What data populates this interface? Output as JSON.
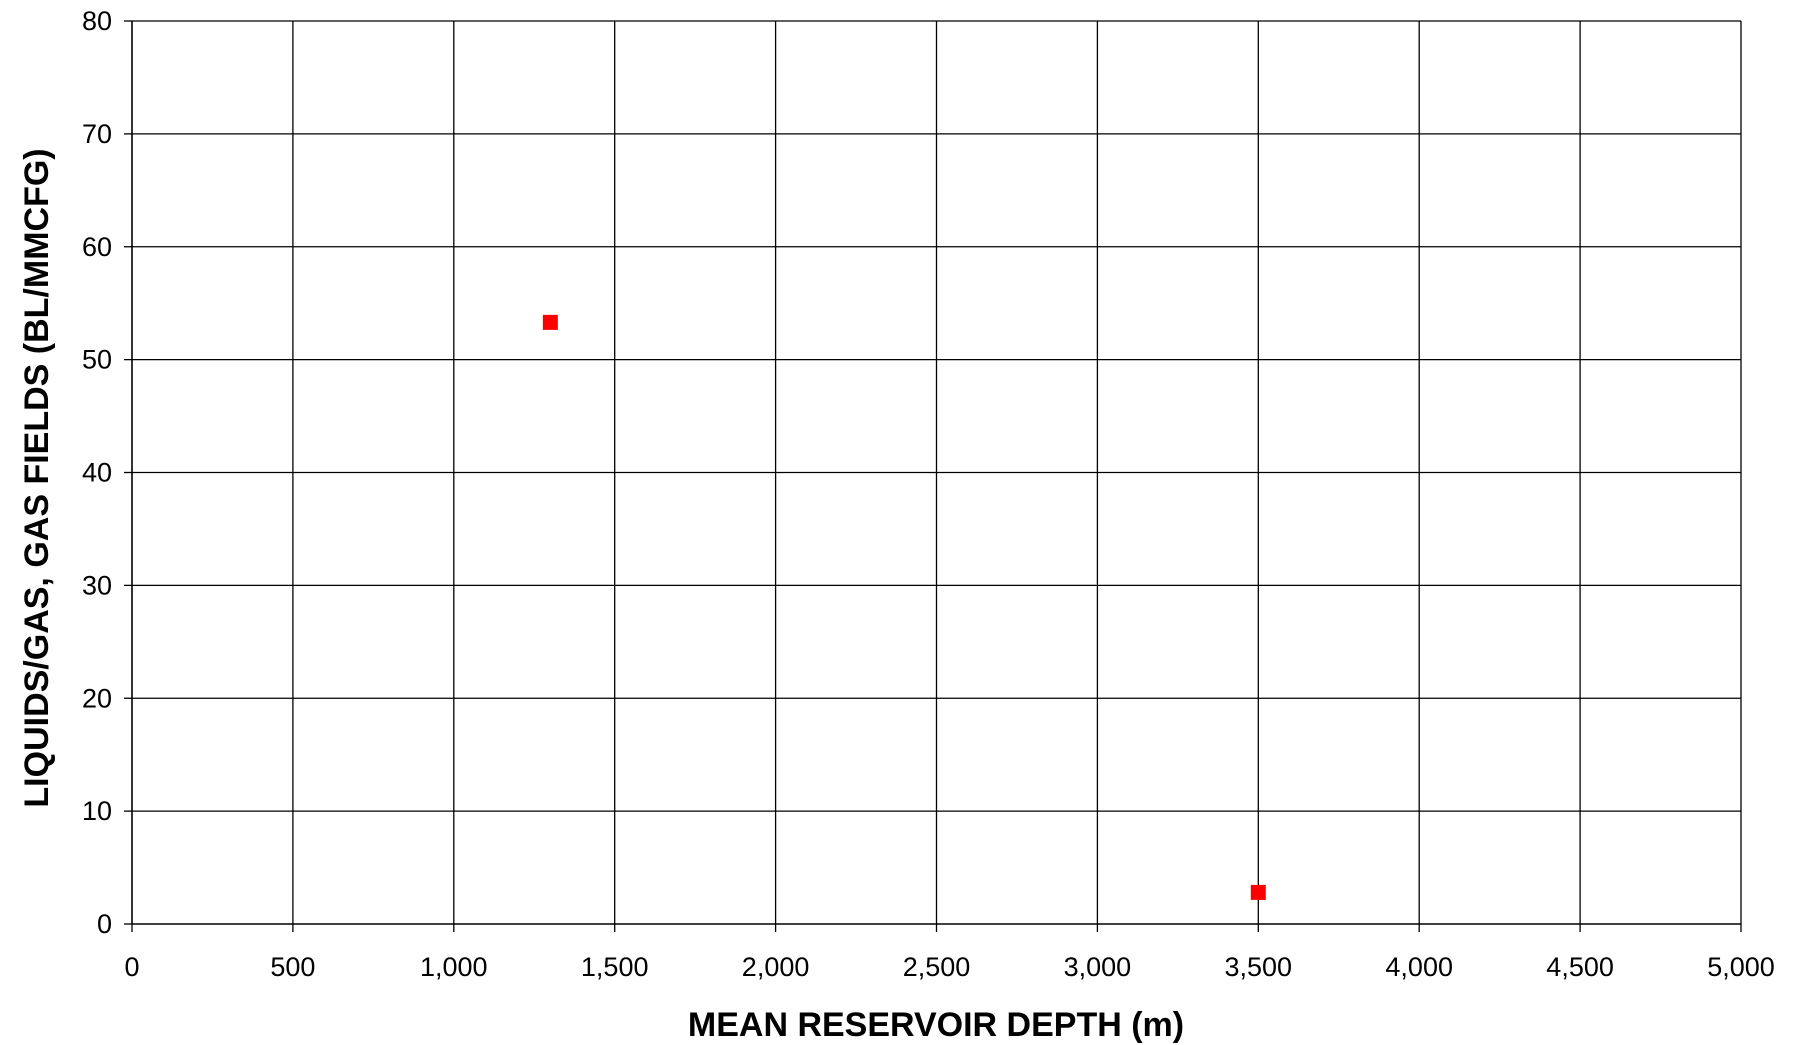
{
  "chart_data": {
    "type": "scatter",
    "title": "",
    "xlabel": "MEAN RESERVOIR DEPTH (m)",
    "ylabel": "LIQUIDS/GAS, GAS FIELDS (BL/MMCFG)",
    "xlim": [
      0,
      5000
    ],
    "ylim": [
      0,
      80
    ],
    "x_ticks": [
      0,
      500,
      1000,
      1500,
      2000,
      2500,
      3000,
      3500,
      4000,
      4500,
      5000
    ],
    "x_tick_labels": [
      "0",
      "500",
      "1,000",
      "1,500",
      "2,000",
      "2,500",
      "3,000",
      "3,500",
      "4,000",
      "4,500",
      "5,000"
    ],
    "y_ticks": [
      0,
      10,
      20,
      30,
      40,
      50,
      60,
      70,
      80
    ],
    "y_tick_labels": [
      "0",
      "10",
      "20",
      "30",
      "40",
      "50",
      "60",
      "70",
      "80"
    ],
    "grid": true,
    "legend": "none",
    "series": [
      {
        "marker": "square",
        "color": "#ff0000",
        "points": [
          {
            "x": 1300,
            "y": 53.3
          },
          {
            "x": 3500,
            "y": 2.8
          }
        ]
      }
    ]
  }
}
